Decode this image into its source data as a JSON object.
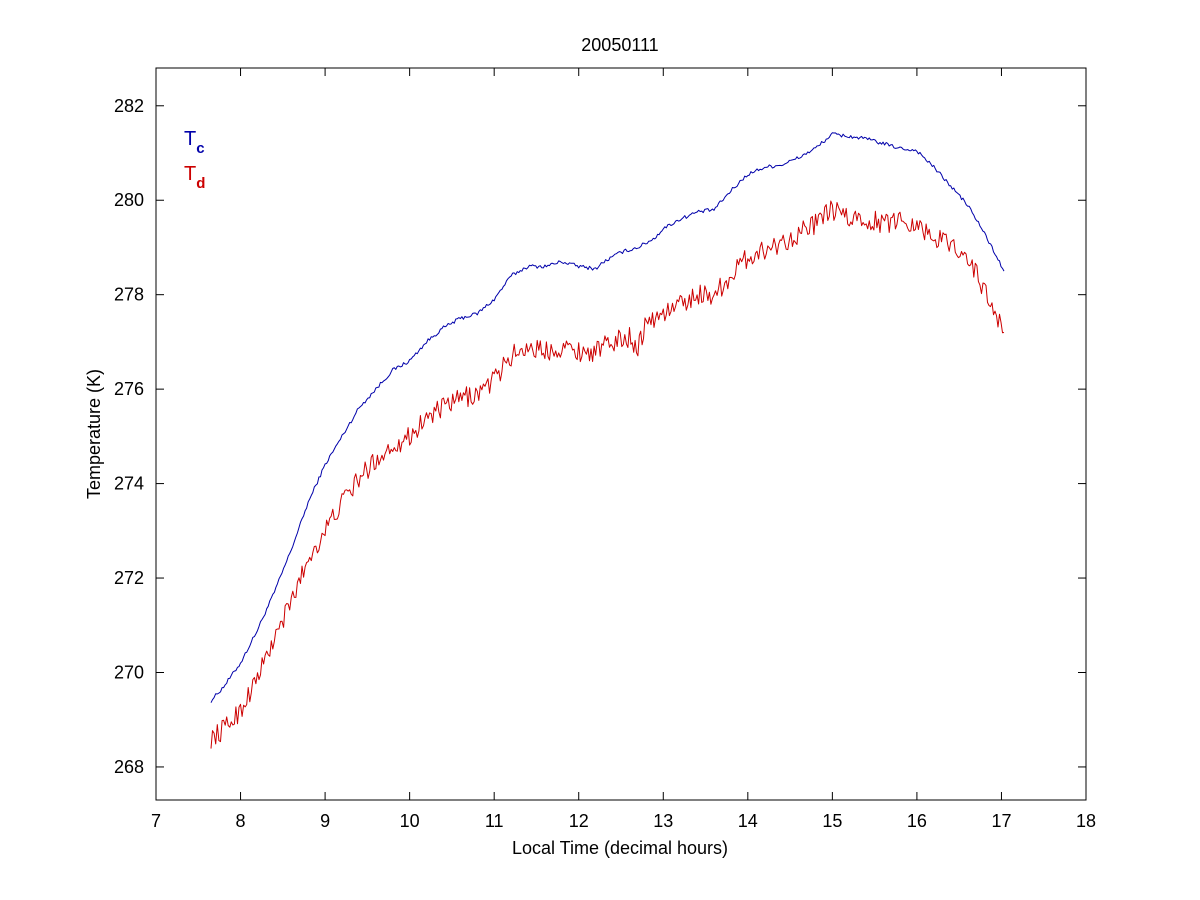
{
  "chart_data": {
    "type": "line",
    "title": "20050111",
    "xlabel": "Local Time (decimal hours)",
    "ylabel": "Temperature (K)",
    "xlim": [
      7,
      18
    ],
    "ylim": [
      267.3,
      282.8
    ],
    "xticks": [
      7,
      8,
      9,
      10,
      11,
      12,
      13,
      14,
      15,
      16,
      17,
      18
    ],
    "yticks": [
      268,
      270,
      272,
      274,
      276,
      278,
      280,
      282
    ],
    "grid": false,
    "legend_placement": "top-left",
    "series": [
      {
        "label_main": "T",
        "label_sub": "c",
        "color": "#0000aa",
        "noise": 0.04,
        "x": [
          7.65,
          7.8,
          8.0,
          8.2,
          8.4,
          8.6,
          8.8,
          9.0,
          9.2,
          9.4,
          9.6,
          9.8,
          10.0,
          10.2,
          10.4,
          10.6,
          10.8,
          11.0,
          11.2,
          11.4,
          11.6,
          11.8,
          12.0,
          12.2,
          12.3,
          12.5,
          12.7,
          12.9,
          13.0,
          13.2,
          13.4,
          13.6,
          13.8,
          14.0,
          14.2,
          14.4,
          14.6,
          14.8,
          15.0,
          15.2,
          15.4,
          15.6,
          15.8,
          16.0,
          16.2,
          16.4,
          16.6,
          16.8,
          17.03
        ],
        "y": [
          269.4,
          269.7,
          270.2,
          270.9,
          271.7,
          272.6,
          273.6,
          274.4,
          275.0,
          275.6,
          276.0,
          276.4,
          276.6,
          277.0,
          277.3,
          277.5,
          277.6,
          277.9,
          278.4,
          278.6,
          278.6,
          278.7,
          278.6,
          278.55,
          278.7,
          278.9,
          279.0,
          279.2,
          279.4,
          279.6,
          279.75,
          279.8,
          280.2,
          280.55,
          280.7,
          280.75,
          280.9,
          281.1,
          281.4,
          281.35,
          281.3,
          281.2,
          281.1,
          281.05,
          280.7,
          280.3,
          279.9,
          279.3,
          278.5
        ]
      },
      {
        "label_main": "T",
        "label_sub": "d",
        "color": "#cc0000",
        "noise": 0.22,
        "x": [
          7.65,
          7.8,
          8.0,
          8.2,
          8.4,
          8.6,
          8.8,
          9.0,
          9.2,
          9.4,
          9.6,
          9.8,
          10.0,
          10.2,
          10.4,
          10.6,
          10.8,
          11.0,
          11.2,
          11.4,
          11.6,
          11.8,
          12.0,
          12.2,
          12.4,
          12.6,
          12.7,
          12.8,
          13.0,
          13.2,
          13.4,
          13.6,
          13.8,
          14.0,
          14.2,
          14.4,
          14.6,
          14.8,
          15.0,
          15.2,
          15.4,
          15.6,
          15.8,
          16.0,
          16.2,
          16.4,
          16.6,
          16.8,
          17.03
        ],
        "y": [
          268.6,
          268.8,
          269.2,
          269.9,
          270.7,
          271.5,
          272.4,
          273.0,
          273.6,
          274.1,
          274.5,
          274.8,
          275.0,
          275.4,
          275.6,
          275.8,
          275.9,
          276.2,
          276.7,
          276.9,
          276.8,
          276.9,
          276.8,
          276.8,
          277.0,
          277.1,
          276.9,
          277.4,
          277.6,
          277.8,
          278.0,
          278.0,
          278.4,
          278.8,
          278.95,
          279.1,
          279.3,
          279.5,
          279.8,
          279.6,
          279.6,
          279.5,
          279.6,
          279.5,
          279.2,
          279.1,
          278.8,
          278.1,
          277.2
        ]
      }
    ]
  }
}
